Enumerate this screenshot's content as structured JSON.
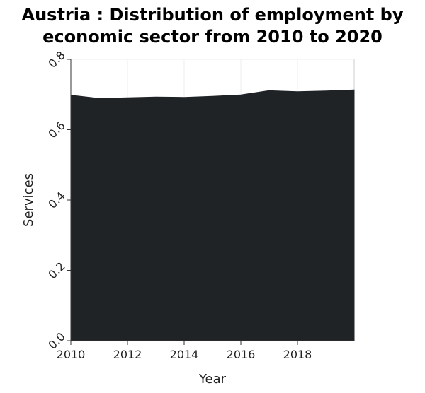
{
  "chart_data": {
    "type": "area",
    "title_lines": [
      "Austria : Distribution of employment by",
      "economic sector from 2010 to 2020"
    ],
    "xlabel": "Year",
    "ylabel": "Services",
    "x": [
      2010,
      2011,
      2012,
      2013,
      2014,
      2015,
      2016,
      2017,
      2018,
      2019,
      2020
    ],
    "series": [
      {
        "values": [
          0.698,
          0.689,
          0.691,
          0.693,
          0.692,
          0.695,
          0.699,
          0.711,
          0.708,
          0.71,
          0.713
        ]
      }
    ],
    "xlim": [
      2010,
      2020
    ],
    "ylim": [
      0.0,
      0.8
    ],
    "x_ticks": [
      "2010",
      "2012",
      "2014",
      "2016",
      "2018"
    ],
    "y_ticks": [
      "0.0",
      "0.2",
      "0.4",
      "0.6",
      "0.8"
    ],
    "grid": true,
    "fill_color": "#1f2326",
    "grid_color": "#eeeeee"
  }
}
